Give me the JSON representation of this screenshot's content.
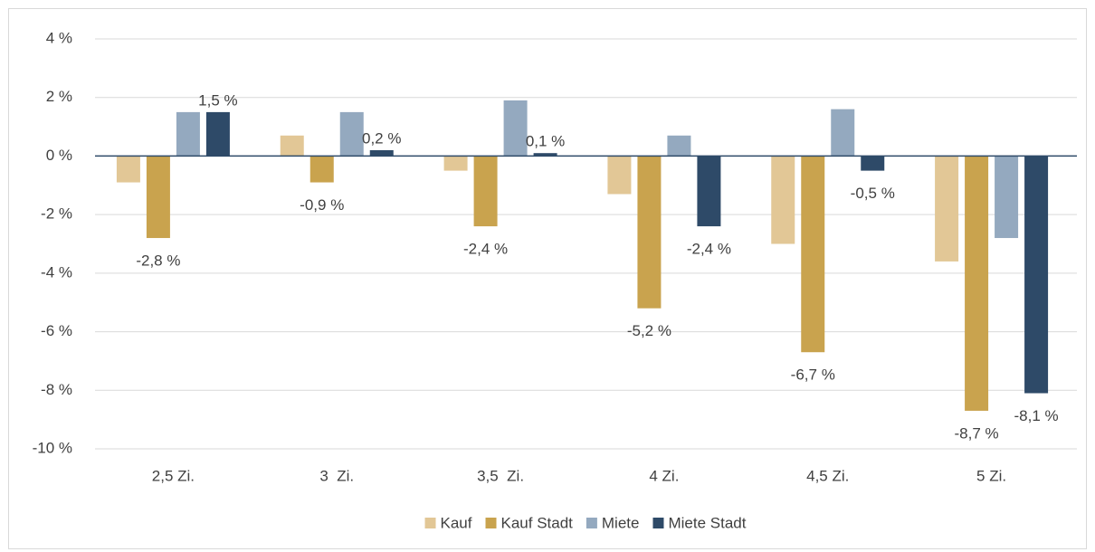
{
  "chart_data": {
    "type": "bar",
    "categories": [
      "2,5 Zi.",
      "3  Zi.",
      "3,5  Zi.",
      "4 Zi.",
      "4,5 Zi.",
      "5 Zi."
    ],
    "series": [
      {
        "name": "Kauf",
        "color": "#e2c796",
        "values": [
          -0.9,
          0.7,
          -0.5,
          -1.3,
          -3.0,
          -3.6
        ]
      },
      {
        "name": "Kauf Stadt",
        "color": "#c9a34e",
        "values": [
          -2.8,
          -0.9,
          -2.4,
          -5.2,
          -6.7,
          -8.7
        ],
        "value_labels": [
          "-2,8 %",
          "-0,9 %",
          "-2,4 %",
          "-5,2 %",
          "-6,7 %",
          "-8,7 %"
        ]
      },
      {
        "name": "Miete",
        "color": "#94a9bf",
        "values": [
          1.5,
          1.5,
          1.9,
          0.7,
          1.6,
          -2.8
        ]
      },
      {
        "name": "Miete Stadt",
        "color": "#2e4a68",
        "values": [
          1.5,
          0.2,
          0.1,
          -2.4,
          -0.5,
          -8.1
        ],
        "value_labels": [
          "1,5 %",
          "0,2 %",
          "0,1 %",
          "-2,4 %",
          "-0,5 %",
          "-8,1 %"
        ]
      }
    ],
    "ylim": [
      -10,
      4
    ],
    "yticks": [
      {
        "value": -10,
        "label": "-10 %"
      },
      {
        "value": -8,
        "label": "-8 %"
      },
      {
        "value": -6,
        "label": "-6 %"
      },
      {
        "value": -4,
        "label": "-4 %"
      },
      {
        "value": -2,
        "label": "-2 %"
      },
      {
        "value": 0,
        "label": "0 %"
      },
      {
        "value": 2,
        "label": "2 %"
      },
      {
        "value": 4,
        "label": "4 %"
      }
    ],
    "grid": true,
    "legend": "bottom"
  }
}
